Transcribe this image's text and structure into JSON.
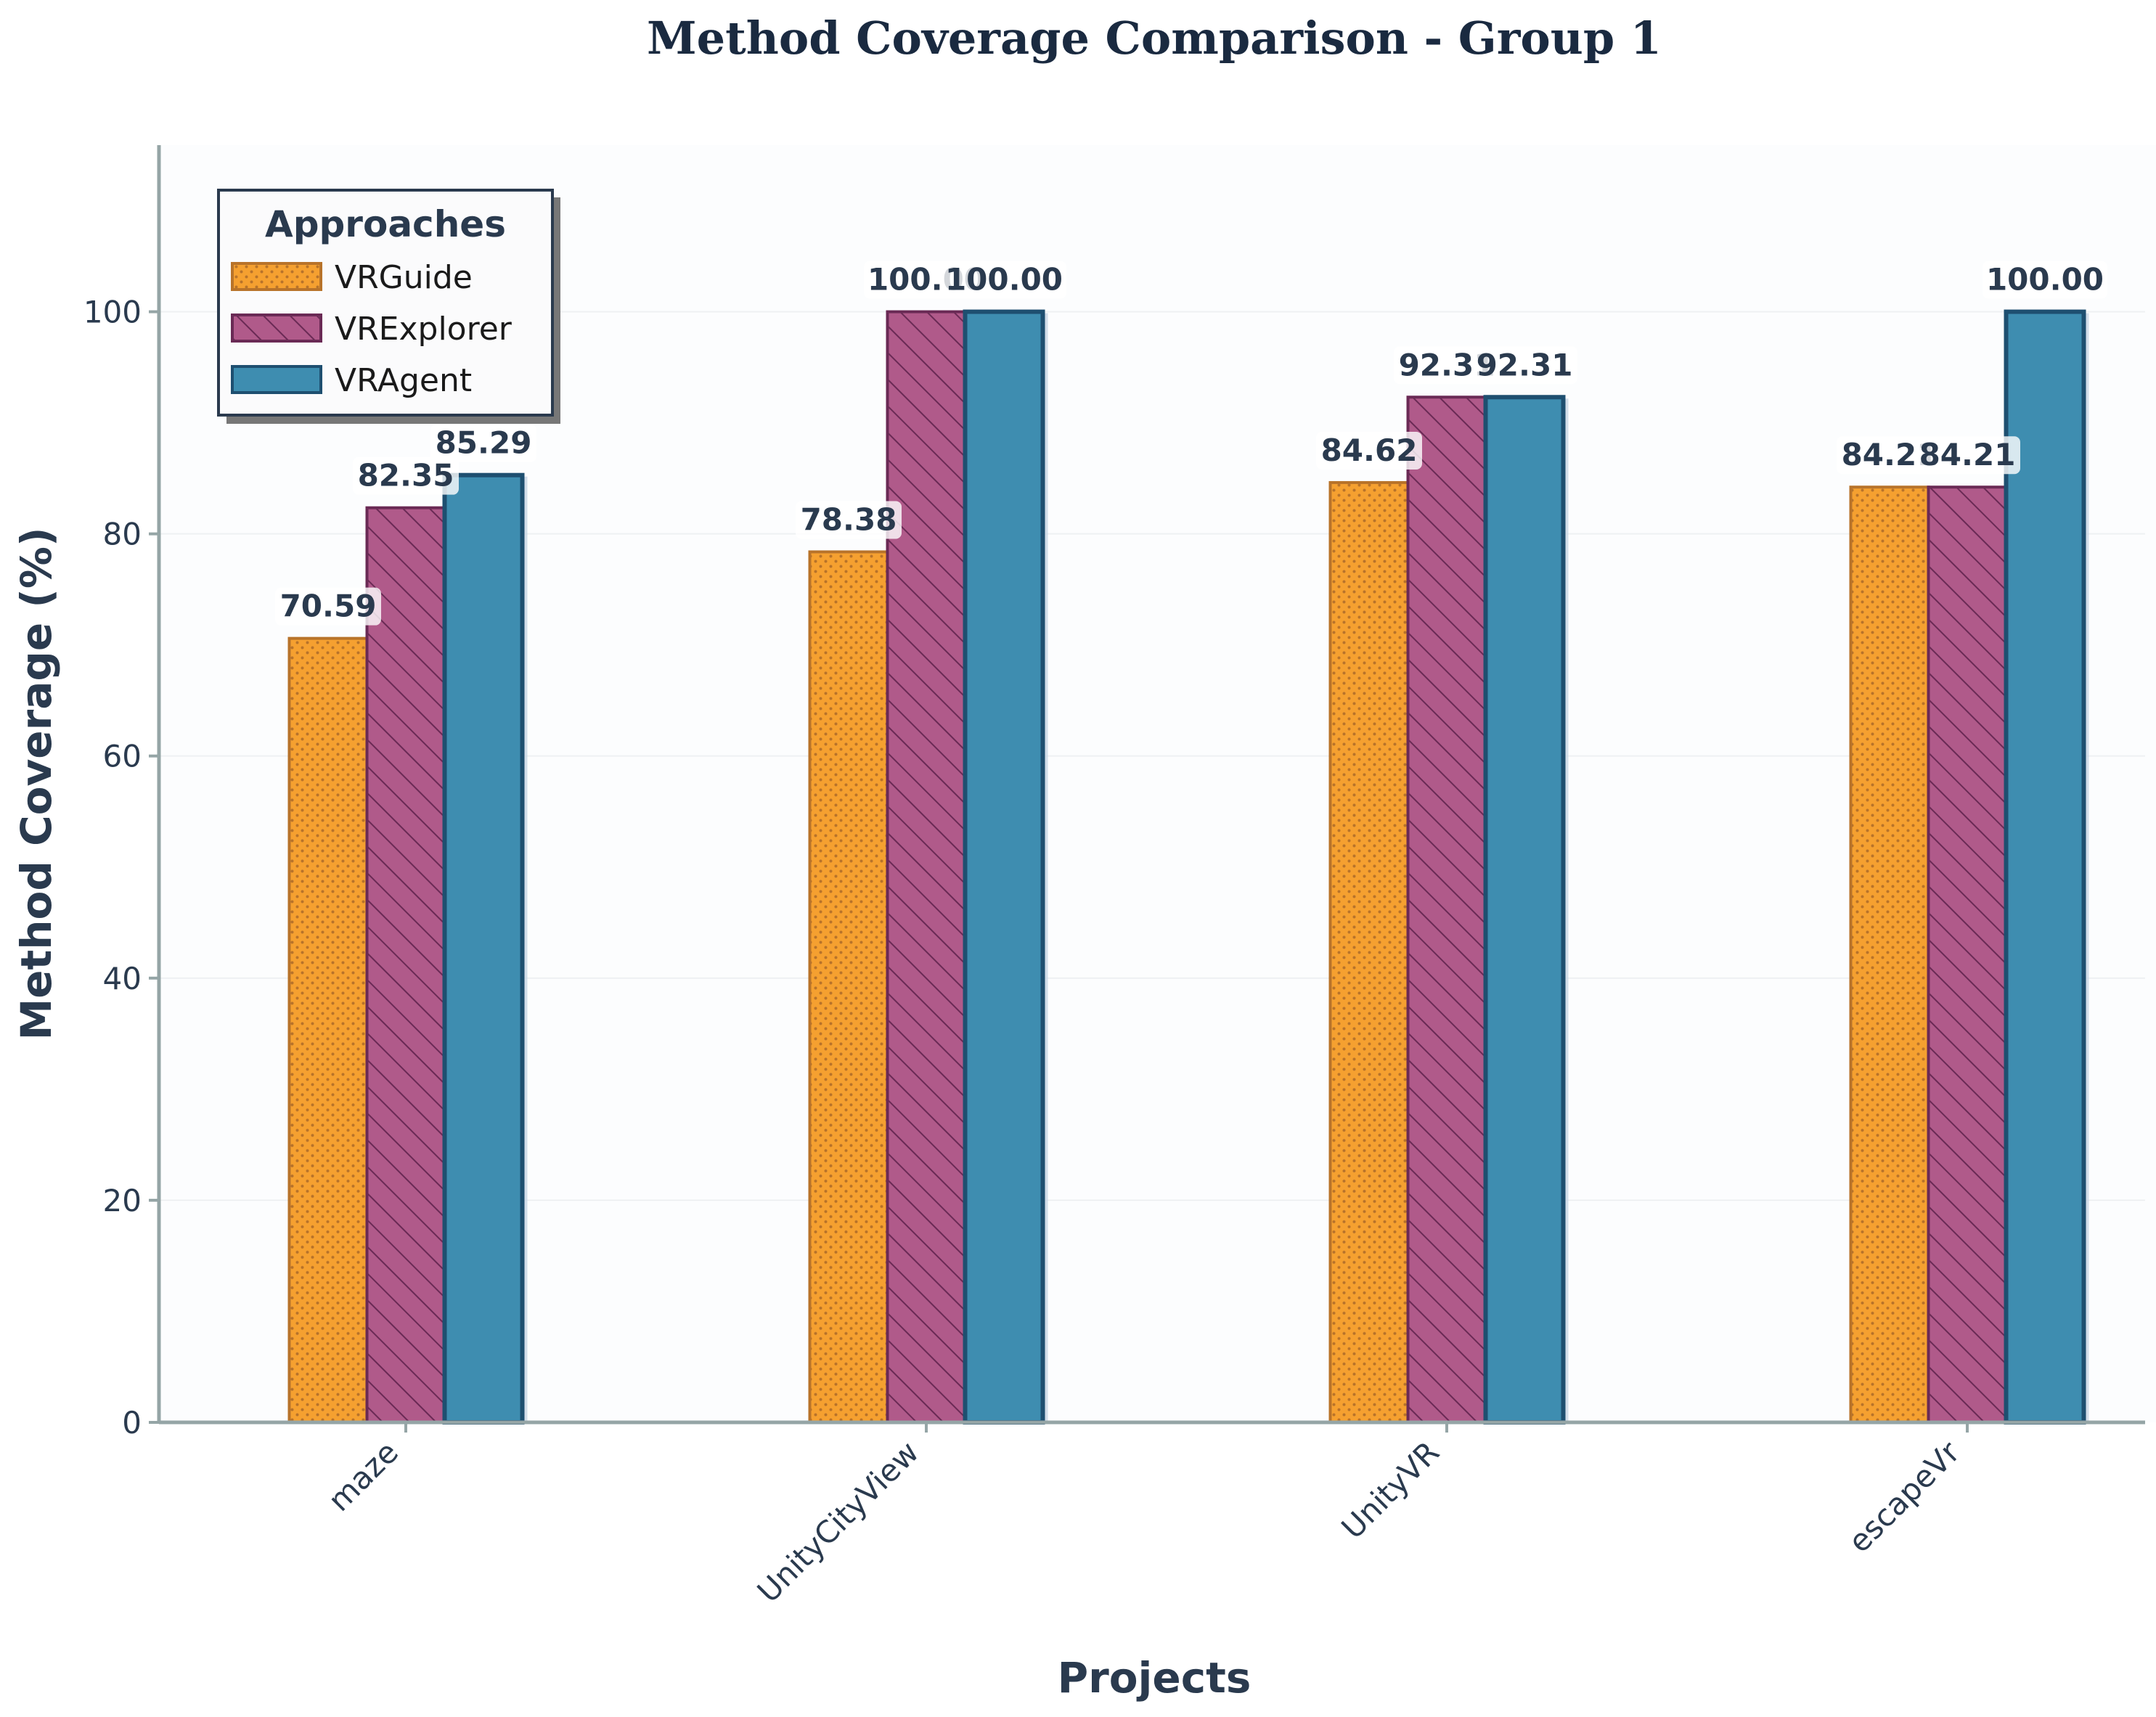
{
  "chart_data": {
    "type": "bar",
    "title": "Method Coverage Comparison - Group 1",
    "xlabel": "Projects",
    "ylabel": "Method Coverage (%)",
    "categories": [
      "maze",
      "UnityCityView",
      "UnityVR",
      "escapeVr"
    ],
    "series": [
      {
        "name": "VRGuide",
        "values": [
          70.59,
          78.38,
          84.62,
          84.21
        ],
        "color": "#f5a030",
        "edge": "#b8732a",
        "pattern": "dots"
      },
      {
        "name": "VRExplorer",
        "values": [
          82.35,
          100.0,
          92.31,
          84.21
        ],
        "color": "#b05a8a",
        "edge": "#6a2a55",
        "pattern": "hatch"
      },
      {
        "name": "VRAgent",
        "values": [
          85.29,
          100.0,
          92.31,
          100.0
        ],
        "color": "#3e8db0",
        "edge": "#1e4f70",
        "pattern": "solid"
      }
    ],
    "ylim": [
      0,
      115
    ],
    "yticks": [
      0,
      20,
      40,
      60,
      80,
      100
    ],
    "grid": true,
    "legend": {
      "title": "Approaches",
      "placement": "top-left"
    }
  }
}
